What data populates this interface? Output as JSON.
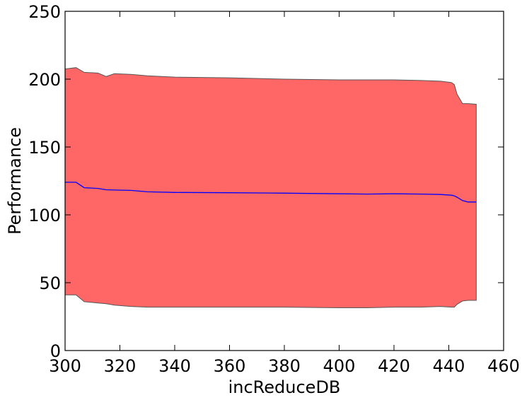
{
  "chart_data": {
    "type": "area",
    "title": "",
    "xlabel": "incReduceDB",
    "ylabel": "Performance",
    "xlim": [
      300,
      460
    ],
    "ylim": [
      0,
      250
    ],
    "xticks": [
      300,
      320,
      340,
      360,
      380,
      400,
      420,
      440,
      460
    ],
    "yticks": [
      0,
      50,
      100,
      150,
      200,
      250
    ],
    "grid": false,
    "x": [
      300,
      304,
      307,
      312,
      315,
      318,
      324,
      330,
      340,
      360,
      380,
      400,
      410,
      420,
      430,
      437,
      441,
      442,
      443,
      445,
      447,
      450
    ],
    "series": [
      {
        "role": "mean",
        "color": "#0000ff",
        "values": [
          124,
          124,
          120,
          119.5,
          118.5,
          118.3,
          118,
          117,
          116.5,
          116.3,
          116,
          115.5,
          115.3,
          115.5,
          115.3,
          115,
          114.5,
          114,
          113,
          110.5,
          109.5,
          109.5
        ]
      },
      {
        "role": "upper",
        "values": [
          207.5,
          208.5,
          205,
          204.5,
          202,
          204,
          203.5,
          202.5,
          201.5,
          201,
          200,
          199.5,
          199.5,
          199.5,
          199,
          198.5,
          197.5,
          196,
          189,
          182,
          182,
          181.5
        ]
      },
      {
        "role": "lower",
        "values": [
          41,
          41,
          36,
          35,
          34.5,
          33.5,
          32.5,
          32,
          32,
          32,
          32,
          31.5,
          31.5,
          32,
          32,
          32.5,
          32,
          32,
          34,
          36.5,
          37,
          37
        ]
      }
    ],
    "band_color": "#ff6666",
    "band_edge_color": "#555555"
  }
}
